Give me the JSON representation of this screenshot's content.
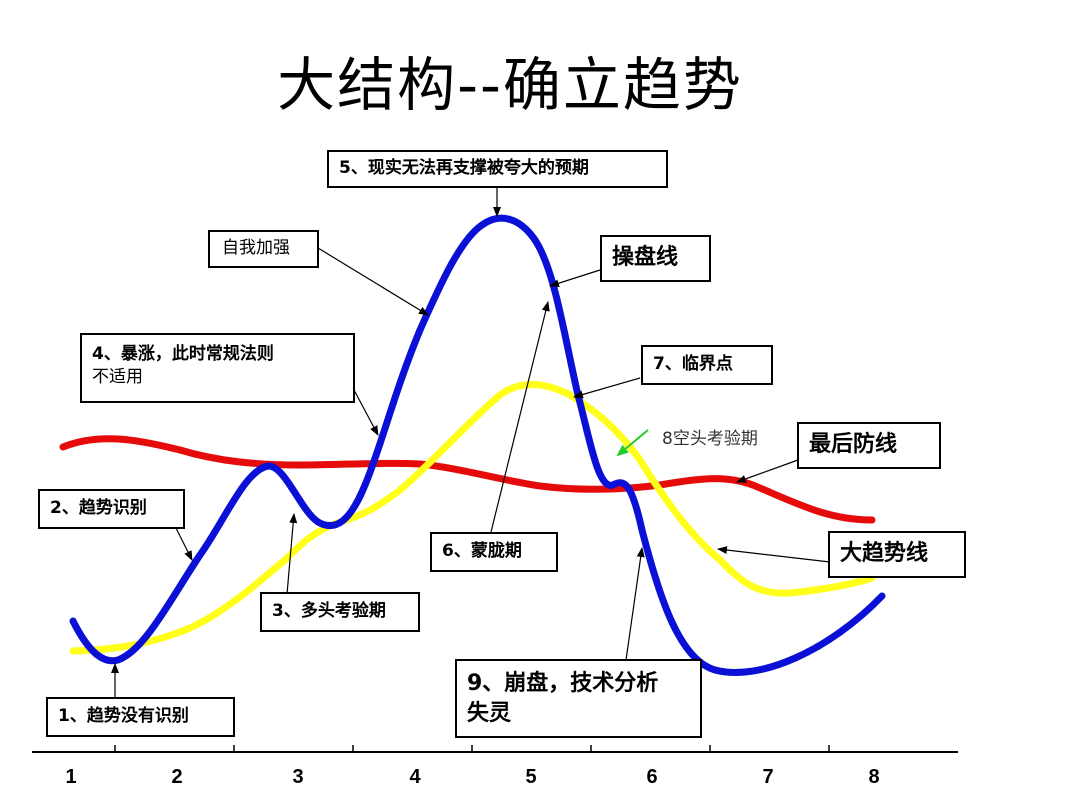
{
  "title": "大结构--确立趋势",
  "labels": {
    "peak": "5、现实无法再支撑被夸大的预期",
    "self_reinforce": "自我加强",
    "operator_line": "操盘线",
    "surge_line1": "4、暴涨，此时常规法则",
    "surge_line2": "不适用",
    "critical": "7、临界点",
    "short_test": "8空头考验期",
    "last_defense": "最后防线",
    "trend_id": "2、趋势识别",
    "hazy": "6、蒙胧期",
    "major_trend": "大趋势线",
    "bull_test": "3、多头考验期",
    "crash_line1": "9、崩盘，技术分析",
    "crash_line2": "失灵",
    "no_trend": "1、趋势没有识别"
  },
  "x_ticks": [
    "1",
    "2",
    "3",
    "4",
    "5",
    "6",
    "7",
    "8"
  ],
  "series": {
    "operator": {
      "color": "#0b10d6"
    },
    "trend": {
      "color": "#ffff1a"
    },
    "defense": {
      "color": "#e60b0b"
    }
  },
  "colors": {
    "short_test_arrow": "#22cc22",
    "short_test_text": "#333333"
  }
}
